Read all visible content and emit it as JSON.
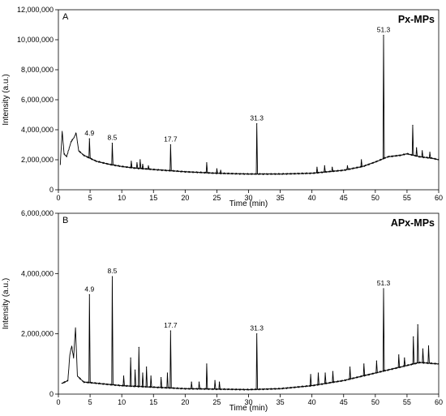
{
  "chart_data": [
    {
      "type": "line",
      "panel_label": "A",
      "title": "Px-MPs",
      "xlabel": "Time (min)",
      "ylabel": "Intensity (a.u.)",
      "xlim": [
        0,
        60
      ],
      "ylim": [
        0,
        12000000
      ],
      "x_ticks": [
        0,
        5,
        10,
        15,
        20,
        25,
        30,
        35,
        40,
        45,
        50,
        55,
        60
      ],
      "y_ticks": [
        0,
        2000000,
        4000000,
        6000000,
        8000000,
        10000000,
        12000000
      ],
      "y_tick_labels": [
        "0",
        "2,000,000",
        "4,000,000",
        "6,000,000",
        "8,000,000",
        "10,000,000",
        "12,000,000"
      ],
      "grid": false,
      "baseline": [
        [
          0.3,
          1700000
        ],
        [
          0.6,
          3900000
        ],
        [
          0.9,
          2400000
        ],
        [
          1.3,
          2200000
        ],
        [
          2.0,
          3200000
        ],
        [
          2.5,
          3500000
        ],
        [
          2.8,
          3800000
        ],
        [
          3.2,
          2600000
        ],
        [
          4.0,
          2300000
        ],
        [
          6.0,
          1900000
        ],
        [
          8.0,
          1700000
        ],
        [
          10.0,
          1550000
        ],
        [
          12.0,
          1450000
        ],
        [
          15.0,
          1350000
        ],
        [
          20.0,
          1200000
        ],
        [
          25.0,
          1100000
        ],
        [
          30.0,
          1050000
        ],
        [
          35.0,
          1050000
        ],
        [
          40.0,
          1100000
        ],
        [
          45.0,
          1300000
        ],
        [
          48.0,
          1550000
        ],
        [
          50.0,
          1850000
        ],
        [
          52.0,
          2200000
        ],
        [
          54.0,
          2300000
        ],
        [
          55.0,
          2400000
        ],
        [
          57.0,
          2200000
        ],
        [
          59.0,
          2100000
        ],
        [
          60.0,
          2000000
        ]
      ],
      "peaks": [
        {
          "x": 4.9,
          "y": 3400000,
          "label": "4.9"
        },
        {
          "x": 8.5,
          "y": 3100000,
          "label": "8.5"
        },
        {
          "x": 11.5,
          "y": 1900000
        },
        {
          "x": 12.4,
          "y": 1800000
        },
        {
          "x": 12.9,
          "y": 2000000
        },
        {
          "x": 13.3,
          "y": 1700000
        },
        {
          "x": 14.2,
          "y": 1600000
        },
        {
          "x": 17.7,
          "y": 3000000,
          "label": "17.7"
        },
        {
          "x": 23.4,
          "y": 1800000
        },
        {
          "x": 25.0,
          "y": 1400000
        },
        {
          "x": 25.6,
          "y": 1300000
        },
        {
          "x": 31.3,
          "y": 4400000,
          "label": "31.3"
        },
        {
          "x": 40.8,
          "y": 1500000
        },
        {
          "x": 42.0,
          "y": 1600000
        },
        {
          "x": 43.2,
          "y": 1500000
        },
        {
          "x": 45.6,
          "y": 1600000
        },
        {
          "x": 47.8,
          "y": 2000000
        },
        {
          "x": 51.3,
          "y": 10300000,
          "label": "51.3"
        },
        {
          "x": 55.9,
          "y": 4300000
        },
        {
          "x": 56.5,
          "y": 2800000
        },
        {
          "x": 57.4,
          "y": 2600000
        },
        {
          "x": 58.6,
          "y": 2500000
        }
      ]
    },
    {
      "type": "line",
      "panel_label": "B",
      "title": "APx-MPs",
      "xlabel": "Time (min)",
      "ylabel": "Intensity (a.u.)",
      "xlim": [
        0,
        60
      ],
      "ylim": [
        0,
        6000000
      ],
      "x_ticks": [
        0,
        5,
        10,
        15,
        20,
        25,
        30,
        35,
        40,
        45,
        50,
        55,
        60
      ],
      "y_ticks": [
        0,
        2000000,
        4000000,
        6000000
      ],
      "y_tick_labels": [
        "0",
        "2,000,000",
        "4,000,000",
        "6,000,000"
      ],
      "grid": false,
      "baseline": [
        [
          0.5,
          350000
        ],
        [
          1.5,
          450000
        ],
        [
          1.8,
          1300000
        ],
        [
          2.1,
          1600000
        ],
        [
          2.4,
          1200000
        ],
        [
          2.7,
          2200000
        ],
        [
          3.0,
          600000
        ],
        [
          4.0,
          400000
        ],
        [
          10.0,
          280000
        ],
        [
          20.0,
          180000
        ],
        [
          30.0,
          150000
        ],
        [
          35.0,
          180000
        ],
        [
          40.0,
          280000
        ],
        [
          45.0,
          450000
        ],
        [
          48.0,
          600000
        ],
        [
          50.0,
          700000
        ],
        [
          52.0,
          800000
        ],
        [
          55.0,
          950000
        ],
        [
          57.0,
          1050000
        ],
        [
          60.0,
          1000000
        ]
      ],
      "peaks": [
        {
          "x": 4.9,
          "y": 3300000,
          "label": "4.9"
        },
        {
          "x": 8.5,
          "y": 3900000,
          "label": "8.5"
        },
        {
          "x": 10.3,
          "y": 600000
        },
        {
          "x": 11.4,
          "y": 1200000
        },
        {
          "x": 12.1,
          "y": 800000
        },
        {
          "x": 12.7,
          "y": 1550000
        },
        {
          "x": 13.3,
          "y": 700000
        },
        {
          "x": 13.9,
          "y": 900000
        },
        {
          "x": 14.6,
          "y": 600000
        },
        {
          "x": 16.2,
          "y": 550000
        },
        {
          "x": 17.2,
          "y": 700000
        },
        {
          "x": 17.7,
          "y": 2100000,
          "label": "17.7"
        },
        {
          "x": 21.0,
          "y": 400000
        },
        {
          "x": 22.2,
          "y": 400000
        },
        {
          "x": 23.4,
          "y": 1000000
        },
        {
          "x": 24.7,
          "y": 450000
        },
        {
          "x": 25.4,
          "y": 400000
        },
        {
          "x": 31.3,
          "y": 2000000,
          "label": "31.3"
        },
        {
          "x": 39.8,
          "y": 650000
        },
        {
          "x": 41.0,
          "y": 700000
        },
        {
          "x": 42.1,
          "y": 700000
        },
        {
          "x": 43.3,
          "y": 750000
        },
        {
          "x": 46.0,
          "y": 900000
        },
        {
          "x": 48.2,
          "y": 1000000
        },
        {
          "x": 50.2,
          "y": 1100000
        },
        {
          "x": 51.3,
          "y": 3500000,
          "label": "51.3"
        },
        {
          "x": 53.7,
          "y": 1300000
        },
        {
          "x": 54.6,
          "y": 1200000
        },
        {
          "x": 56.0,
          "y": 1900000
        },
        {
          "x": 56.7,
          "y": 2300000
        },
        {
          "x": 57.5,
          "y": 1500000
        },
        {
          "x": 58.4,
          "y": 1600000
        }
      ]
    }
  ]
}
